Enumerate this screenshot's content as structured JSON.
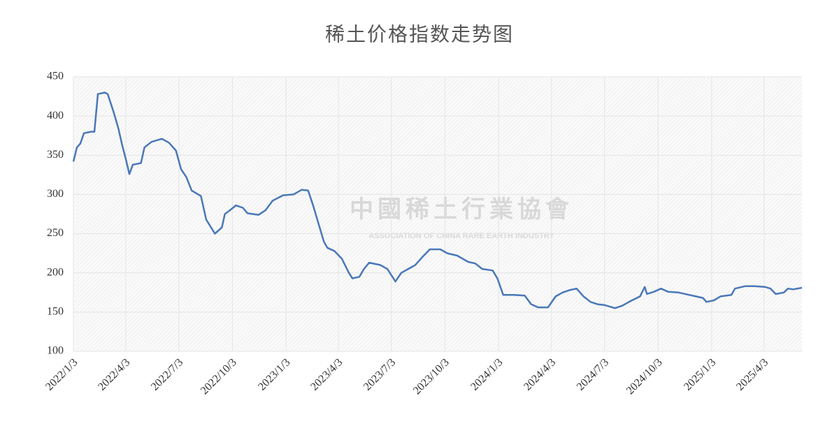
{
  "chart_data": {
    "type": "line",
    "title": "稀土价格指数走势图",
    "watermark": [
      "中國稀土行業協會",
      "ASSOCIATION OF CHINA RARE EARTH INDUSTRY"
    ],
    "x": [
      "2022/1/3",
      "2022/1/9",
      "2022/1/15",
      "2022/1/21",
      "2022/2/2",
      "2022/2/8",
      "2022/2/14",
      "2022/2/26",
      "2022/3/3",
      "2022/3/13",
      "2022/3/21",
      "2022/3/28",
      "2022/4/3",
      "2022/4/9",
      "2022/4/15",
      "2022/4/29",
      "2022/5/5",
      "2022/5/17",
      "2022/6/4",
      "2022/6/16",
      "2022/6/28",
      "2022/7/7",
      "2022/7/16",
      "2022/7/25",
      "2022/8/10",
      "2022/8/19",
      "2022/9/3",
      "2022/9/15",
      "2022/9/20",
      "2022/9/29",
      "2022/10/9",
      "2022/10/21",
      "2022/10/29",
      "2022/11/17",
      "2022/11/29",
      "2022/12/11",
      "2022/12/29",
      "2023/1/16",
      "2023/1/30",
      "2023/2/10",
      "2023/2/19",
      "2023/2/27",
      "2023/3/9",
      "2023/3/15",
      "2023/3/27",
      "2023/4/9",
      "2023/4/21",
      "2023/4/27",
      "2023/5/9",
      "2023/5/17",
      "2023/5/26",
      "2023/6/14",
      "2023/6/26",
      "2023/7/10",
      "2023/7/20",
      "2023/8/1",
      "2023/8/13",
      "2023/8/25",
      "2023/9/7",
      "2023/9/25",
      "2023/10/7",
      "2023/10/24",
      "2023/11/12",
      "2023/11/24",
      "2023/12/6",
      "2023/12/24",
      "2024/1/1",
      "2024/1/11",
      "2024/1/29",
      "2024/2/17",
      "2024/2/28",
      "2024/3/11",
      "2024/3/28",
      "2024/4/10",
      "2024/4/22",
      "2024/5/4",
      "2024/5/16",
      "2024/5/28",
      "2024/6/9",
      "2024/6/21",
      "2024/7/3",
      "2024/7/21",
      "2024/8/2",
      "2024/8/14",
      "2024/9/2",
      "2024/9/10",
      "2024/9/14",
      "2024/9/26",
      "2024/10/8",
      "2024/10/20",
      "2024/11/7",
      "2024/11/25",
      "2024/12/7",
      "2024/12/19",
      "2024/12/25",
      "2025/1/7",
      "2025/1/18",
      "2025/2/6",
      "2025/2/12",
      "2025/3/1",
      "2025/3/18",
      "2025/4/5",
      "2025/4/14",
      "2025/4/23",
      "2025/5/7",
      "2025/5/14",
      "2025/5/23",
      "2025/6/7"
    ],
    "series": [
      {
        "color": "#4a78b8",
        "values": [
          342,
          360,
          365,
          378,
          380,
          380,
          428,
          430,
          428,
          405,
          385,
          362,
          345,
          326,
          338,
          340,
          360,
          367,
          371,
          366,
          356,
          332,
          322,
          305,
          298,
          268,
          250,
          258,
          275,
          280,
          286,
          283,
          276,
          274,
          280,
          292,
          299,
          300,
          306,
          305,
          285,
          265,
          240,
          232,
          228,
          218,
          200,
          193,
          195,
          205,
          213,
          210,
          205,
          189,
          200,
          205,
          210,
          220,
          230,
          230,
          225,
          222,
          214,
          212,
          205,
          203,
          193,
          172,
          172,
          171,
          160,
          156,
          156,
          170,
          175,
          178,
          180,
          170,
          163,
          160,
          159,
          155,
          158,
          163,
          170,
          182,
          173,
          176,
          180,
          176,
          175,
          172,
          170,
          168,
          163,
          165,
          170,
          172,
          180,
          183,
          183,
          182,
          180,
          173,
          175,
          180,
          179,
          181
        ]
      }
    ],
    "xlim": [
      "2022/1/3",
      "2025/6/7"
    ],
    "xticks": [
      "2022/1/3",
      "2022/4/3",
      "2022/7/3",
      "2022/10/3",
      "2023/1/3",
      "2023/4/3",
      "2023/7/3",
      "2023/10/3",
      "2024/1/3",
      "2024/4/3",
      "2024/7/3",
      "2024/10/3",
      "2025/1/3",
      "2025/4/3"
    ],
    "ylim": [
      100,
      450
    ],
    "yticks": [
      100,
      150,
      200,
      250,
      300,
      350,
      400,
      450
    ],
    "grid": true
  }
}
